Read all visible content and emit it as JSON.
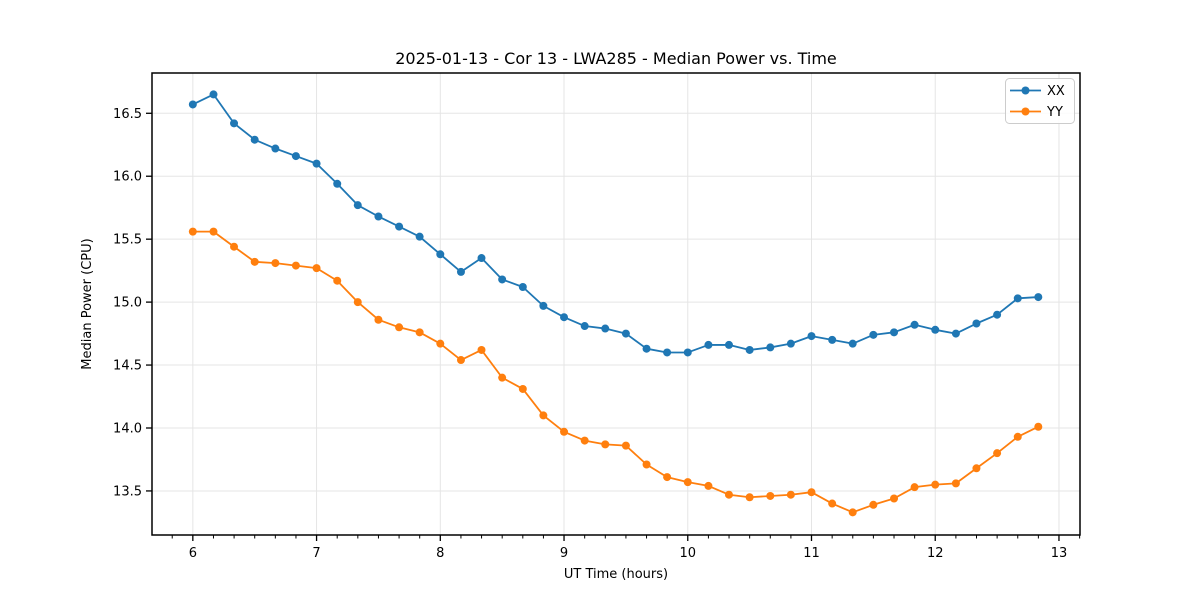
{
  "chart_data": {
    "type": "line",
    "title": "2025-01-13 - Cor 13 - LWA285 - Median Power vs. Time",
    "xlabel": "UT Time (hours)",
    "ylabel": "Median Power (CPU)",
    "xlim": [
      5.67,
      13.17
    ],
    "ylim": [
      13.15,
      16.82
    ],
    "x_ticks": [
      6,
      7,
      8,
      9,
      10,
      11,
      12,
      13
    ],
    "x_minor_tick_step": 0.16667,
    "y_ticks": [
      13.5,
      14.0,
      14.5,
      15.0,
      15.5,
      16.0,
      16.5
    ],
    "grid": true,
    "legend_position": "top-right",
    "marker": "circle",
    "x": [
      6.0,
      6.167,
      6.333,
      6.5,
      6.667,
      6.833,
      7.0,
      7.167,
      7.333,
      7.5,
      7.667,
      7.833,
      8.0,
      8.167,
      8.333,
      8.5,
      8.667,
      8.833,
      9.0,
      9.167,
      9.333,
      9.5,
      9.667,
      9.833,
      10.0,
      10.167,
      10.333,
      10.5,
      10.667,
      10.833,
      11.0,
      11.167,
      11.333,
      11.5,
      11.667,
      11.833,
      12.0,
      12.167,
      12.333,
      12.5,
      12.667,
      12.833
    ],
    "series": [
      {
        "name": "XX",
        "color": "#1f77b4",
        "values": [
          16.57,
          16.65,
          16.42,
          16.29,
          16.22,
          16.16,
          16.1,
          15.94,
          15.77,
          15.68,
          15.6,
          15.52,
          15.38,
          15.24,
          15.35,
          15.18,
          15.12,
          14.97,
          14.88,
          14.81,
          14.79,
          14.75,
          14.63,
          14.6,
          14.6,
          14.66,
          14.66,
          14.62,
          14.64,
          14.67,
          14.73,
          14.7,
          14.67,
          14.74,
          14.76,
          14.82,
          14.78,
          14.75,
          14.83,
          14.9,
          15.03,
          15.04
        ]
      },
      {
        "name": "YY",
        "color": "#ff7f0e",
        "values": [
          15.56,
          15.56,
          15.44,
          15.32,
          15.31,
          15.29,
          15.27,
          15.17,
          15.0,
          14.86,
          14.8,
          14.76,
          14.67,
          14.54,
          14.62,
          14.4,
          14.31,
          14.1,
          13.97,
          13.9,
          13.87,
          13.86,
          13.71,
          13.61,
          13.57,
          13.54,
          13.47,
          13.45,
          13.46,
          13.47,
          13.49,
          13.4,
          13.33,
          13.39,
          13.44,
          13.53,
          13.55,
          13.56,
          13.68,
          13.8,
          13.93,
          14.01
        ]
      }
    ],
    "colors": {
      "grid": "#e5e5e5",
      "spine": "#000000",
      "background": "#ffffff",
      "legend_border": "#cccccc"
    }
  }
}
